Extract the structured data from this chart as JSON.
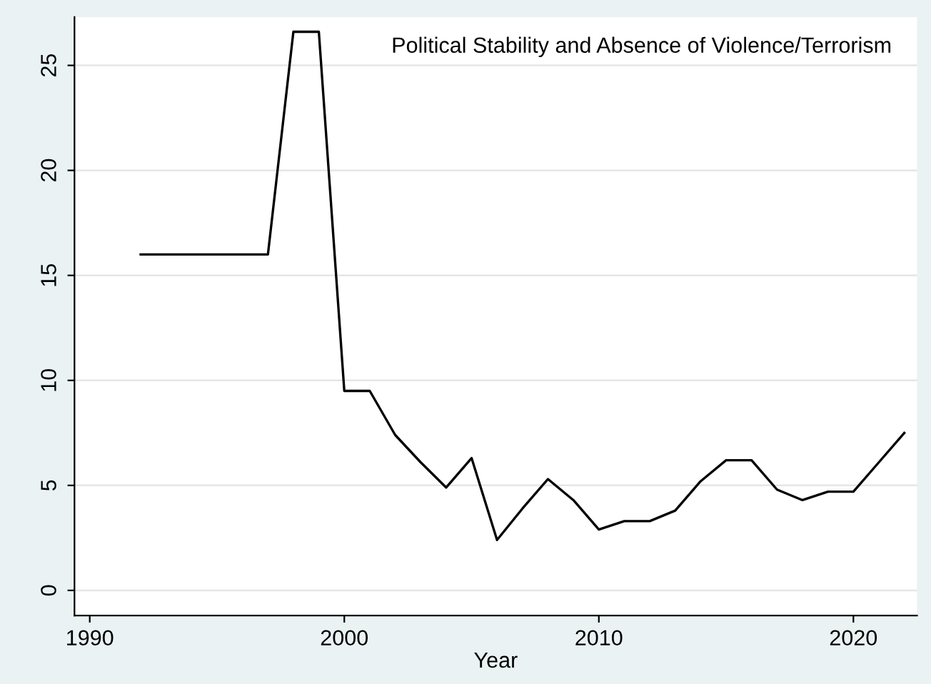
{
  "chart_data": {
    "type": "line",
    "title": "Political Stability and Absence of Violence/Terrorism",
    "xlabel": "Year",
    "x": [
      1992,
      1993,
      1994,
      1995,
      1996,
      1997,
      1998,
      1999,
      2000,
      2001,
      2002,
      2003,
      2004,
      2005,
      2006,
      2007,
      2008,
      2009,
      2010,
      2011,
      2012,
      2013,
      2014,
      2015,
      2016,
      2017,
      2018,
      2019,
      2020,
      2021,
      2022
    ],
    "series": [
      {
        "color": "#000000",
        "values": [
          16,
          16,
          16,
          16,
          16,
          16,
          26.6,
          26.6,
          9.5,
          9.5,
          7.4,
          6.1,
          4.9,
          6.3,
          2.4,
          3.9,
          5.3,
          4.3,
          2.9,
          3.3,
          3.3,
          3.8,
          5.2,
          6.2,
          6.2,
          4.8,
          4.3,
          4.7,
          4.7,
          6.1,
          7.5
        ]
      }
    ],
    "xlim": [
      1989.4,
      2022.5
    ],
    "xticks": [
      1990,
      2000,
      2010,
      2020
    ],
    "ylim": [
      -1.2,
      27.3
    ],
    "yticks": [
      0,
      5,
      10,
      15,
      20,
      25
    ],
    "grid": "y",
    "marker": "none",
    "line_style": "solid",
    "legend": false
  }
}
